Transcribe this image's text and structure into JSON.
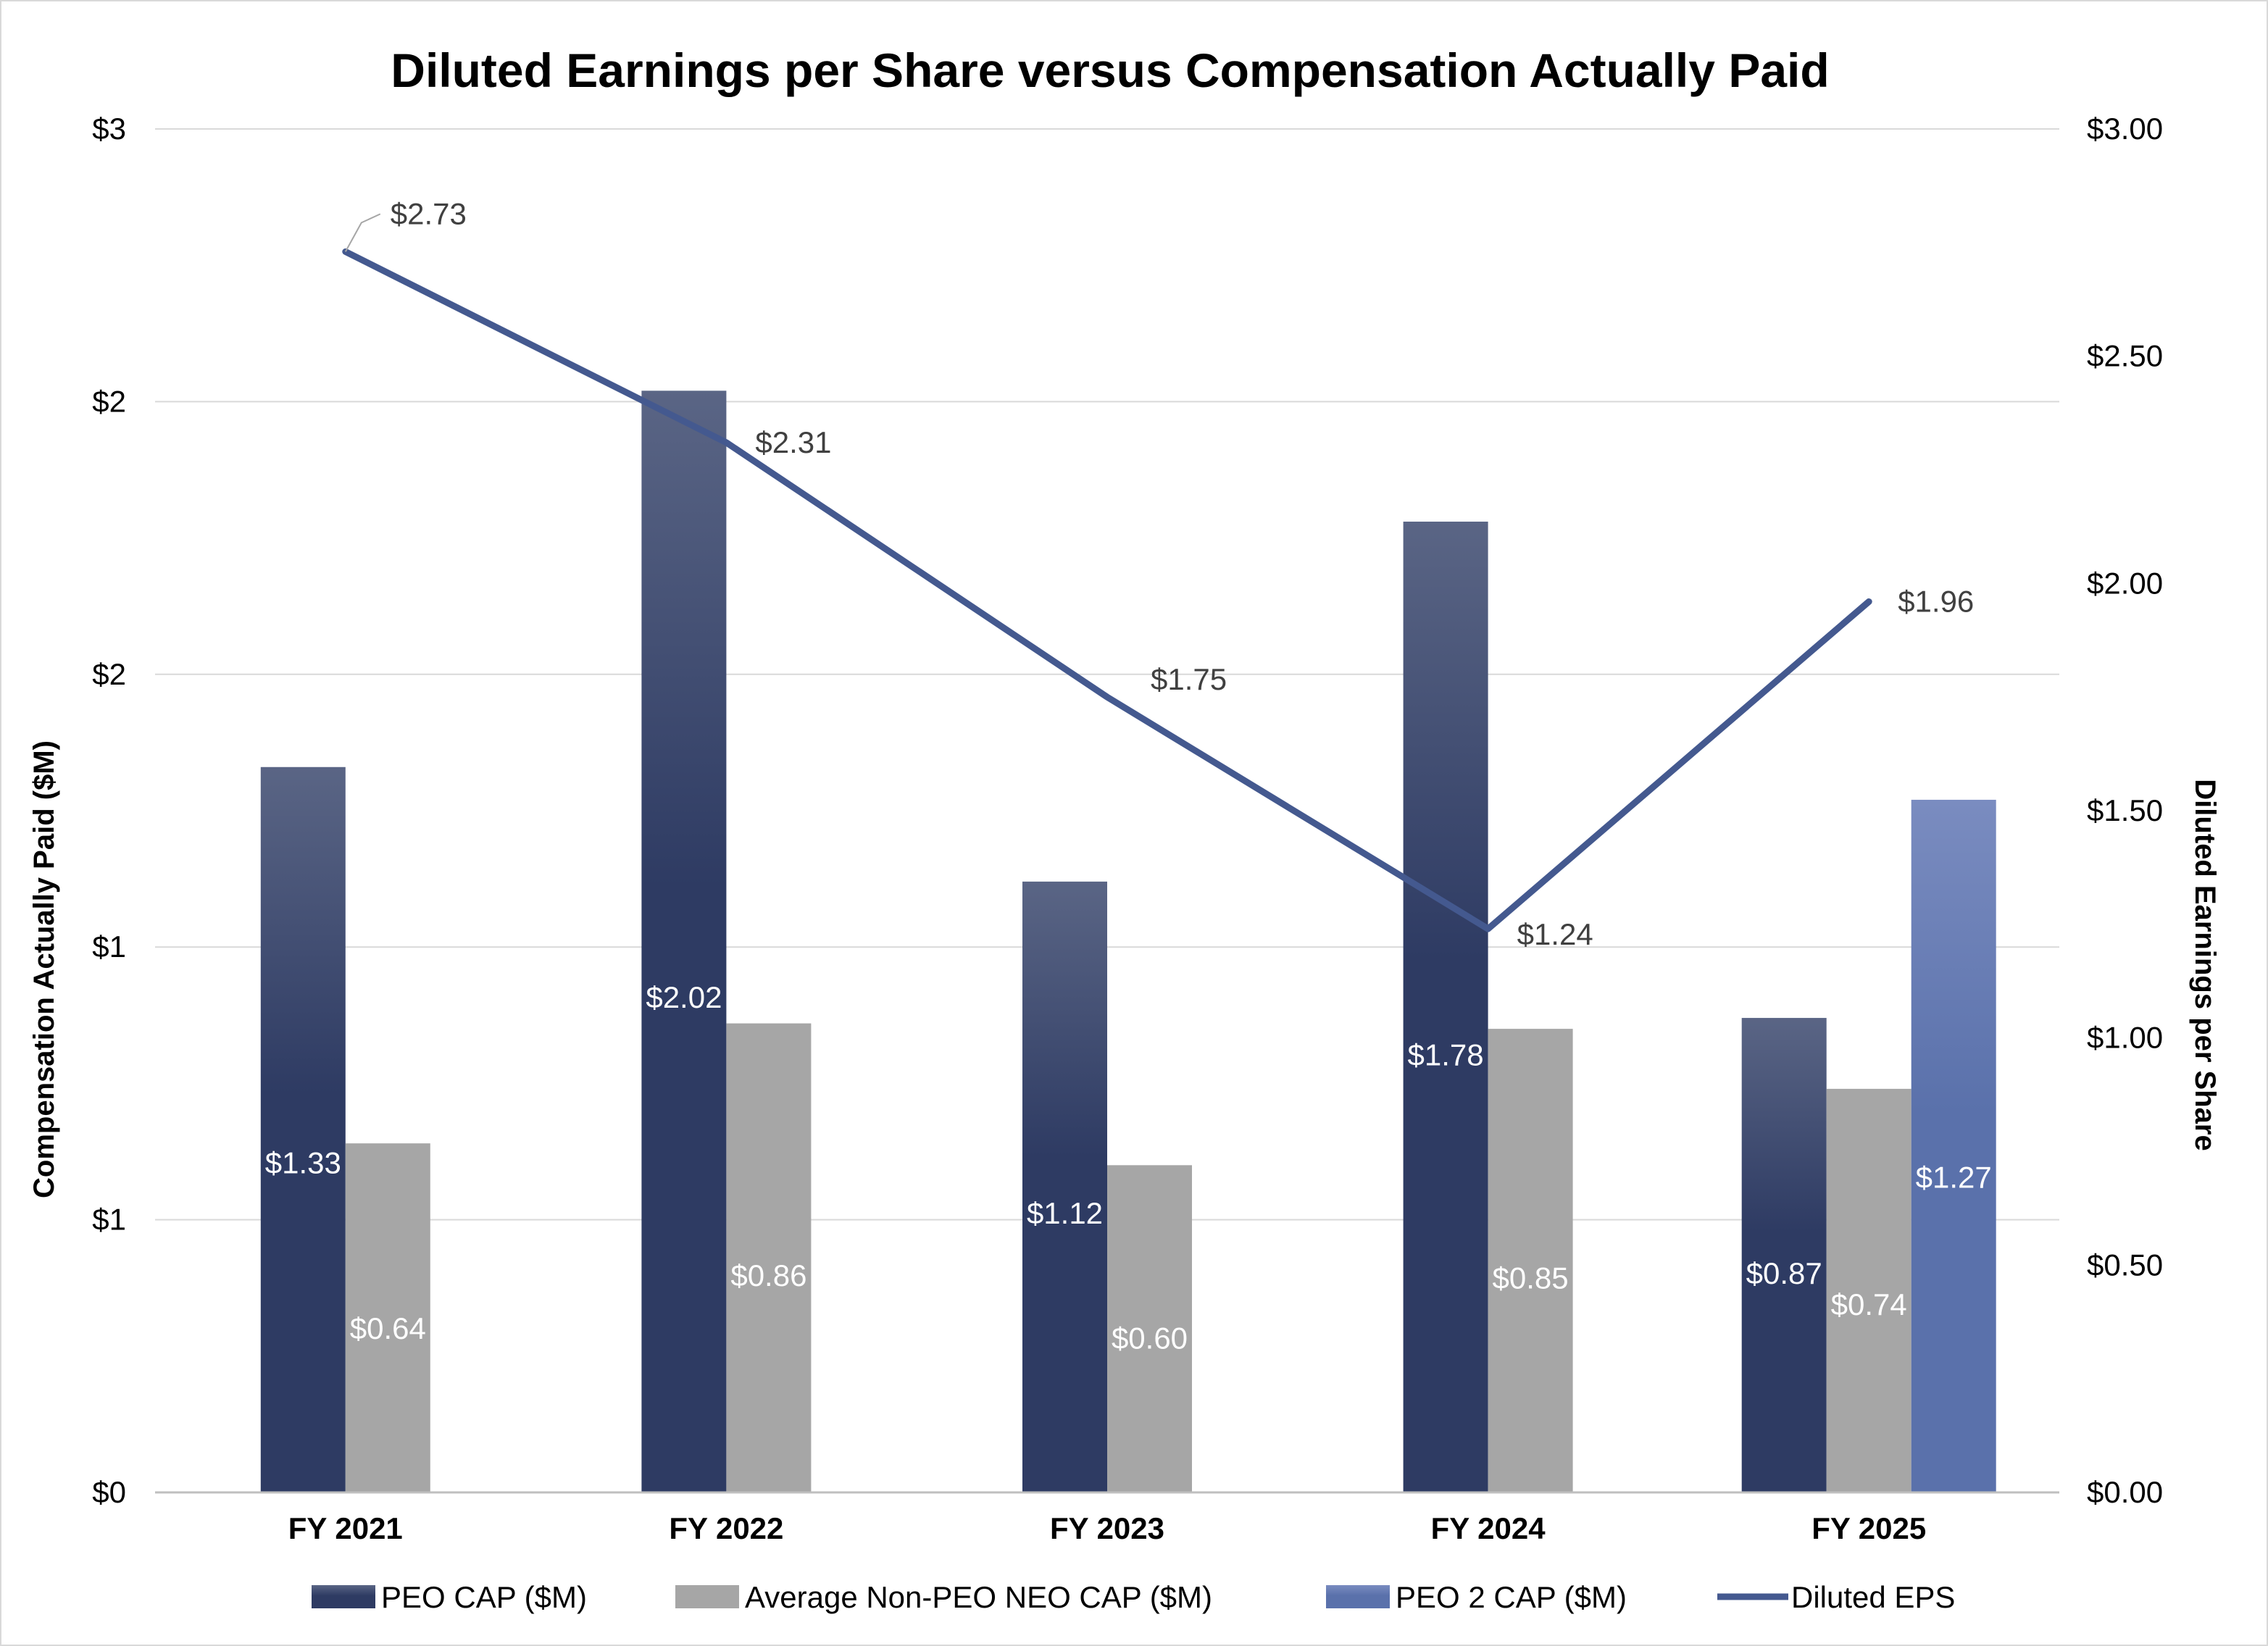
{
  "chart_data": {
    "type": "bar",
    "title": "Diluted Earnings per Share versus Compensation Actually Paid",
    "categories": [
      "FY 2021",
      "FY 2022",
      "FY 2023",
      "FY 2024",
      "FY 2025"
    ],
    "y_left": {
      "label": "Compensation Actually Paid ($M)",
      "ylim": [
        0,
        2.5
      ],
      "tick_values": [
        0,
        0.5,
        1,
        1.5,
        2,
        2.5
      ],
      "tick_labels": [
        "$0",
        "$1",
        "$1",
        "$2",
        "$2",
        "$3"
      ]
    },
    "y_right": {
      "label": "Diluted Earnings per Share",
      "ylim": [
        0,
        3
      ],
      "tick_values": [
        0,
        0.5,
        1,
        1.5,
        2,
        2.5,
        3
      ],
      "tick_labels": [
        "$0.00",
        "$0.50",
        "$1.00",
        "$1.50",
        "$2.00",
        "$2.50",
        "$3.00"
      ]
    },
    "series": [
      {
        "name": "PEO CAP ($M)",
        "kind": "bar",
        "axis": "left",
        "color_top": "#5a6585",
        "color_bottom": "#2e3b63",
        "values": [
          1.33,
          2.02,
          1.12,
          1.78,
          0.87
        ],
        "labels": [
          "$1.33",
          "$2.02",
          "$1.12",
          "$1.78",
          "$0.87"
        ]
      },
      {
        "name": "Average Non-PEO NEO CAP ($M)",
        "kind": "bar",
        "axis": "left",
        "color_top": "#a6a6a6",
        "color_bottom": "#a6a6a6",
        "values": [
          0.64,
          0.86,
          0.6,
          0.85,
          0.74
        ],
        "labels": [
          "$0.64",
          "$0.86",
          "$0.60",
          "$0.85",
          "$0.74"
        ]
      },
      {
        "name": "PEO 2 CAP ($M)",
        "kind": "bar",
        "axis": "left",
        "color_top": "#7a8cc0",
        "color_bottom": "#5a71ab",
        "values": [
          null,
          null,
          null,
          null,
          1.27
        ],
        "labels": [
          "",
          "",
          "",
          "",
          "$1.27"
        ]
      },
      {
        "name": "Diluted EPS",
        "kind": "line",
        "axis": "right",
        "color": "#44598f",
        "values": [
          2.73,
          2.31,
          1.75,
          1.24,
          1.96
        ],
        "labels": [
          "$2.73",
          "$2.31",
          "$1.75",
          "$1.24",
          "$1.96"
        ]
      }
    ],
    "legend_position": "bottom",
    "grid": true
  }
}
